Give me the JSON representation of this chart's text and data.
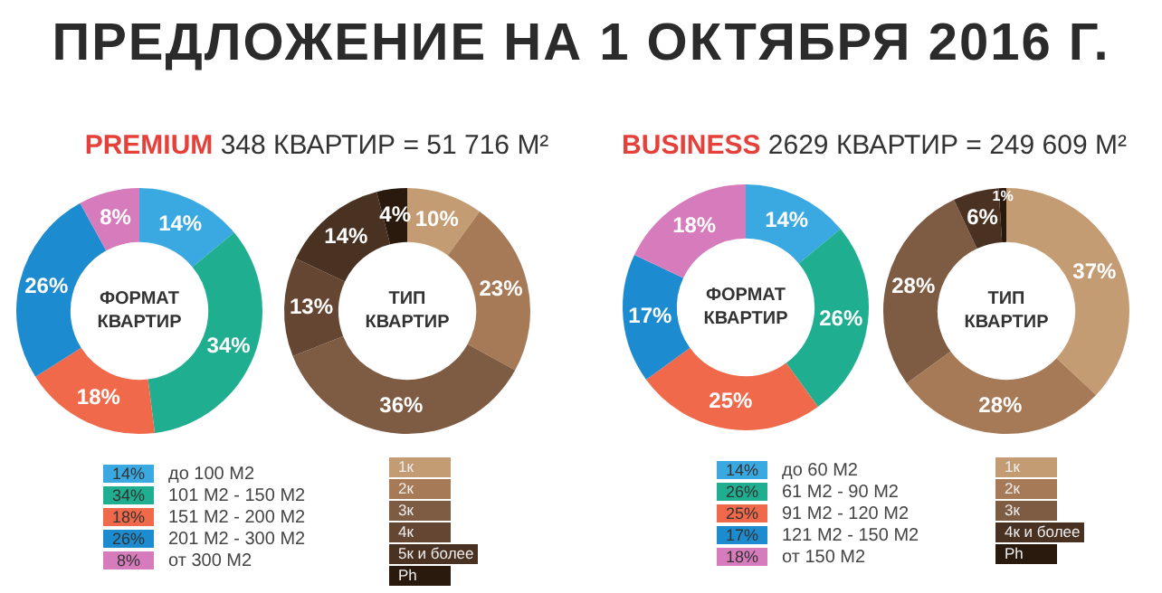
{
  "chart_data": [
    {
      "type": "donut",
      "title": "ПРЕДЛОЖЕНИЕ НА 1 ОКТЯБРЯ 2016 Г.",
      "subtitle": "PREMIUM 348 КВАРТИР = 51 716 М²",
      "annotations": [
        "ФОРМАТ КВАРТИР"
      ],
      "categories": [
        "до 100 М2",
        "101 М2 - 150 М2",
        "151 М2 - 200 М2",
        "201 М2 - 300 М2",
        "от 300 М2"
      ],
      "values": [
        14,
        34,
        18,
        26,
        8
      ],
      "value_labels": [
        "14%",
        "34%",
        "18%",
        "26%",
        "8%"
      ],
      "colors": [
        "#3ba9e1",
        "#1fae8f",
        "#f0694b",
        "#1d8bd0",
        "#d67bbb"
      ],
      "legend": "bottom"
    },
    {
      "type": "donut",
      "annotations": [
        "ТИП КВАРТИР"
      ],
      "categories": [
        "1к",
        "2к",
        "3к",
        "4к",
        "5к и более",
        "Ph"
      ],
      "values": [
        10,
        23,
        36,
        13,
        14,
        4
      ],
      "value_labels": [
        "10%",
        "23%",
        "36%",
        "13%",
        "14%",
        "4%"
      ],
      "colors": [
        "#c49c74",
        "#a67a57",
        "#7e5b43",
        "#654633",
        "#4a3222",
        "#2a190d"
      ],
      "legend": "bottom"
    },
    {
      "type": "donut",
      "subtitle": "BUSINESS 2629 КВАРТИР = 249 609 М²",
      "annotations": [
        "ФОРМАТ КВАРТИР"
      ],
      "categories": [
        "до 60 М2",
        "61 М2 - 90 М2",
        "91 М2 - 120 М2",
        "121 М2 - 150 М2",
        "от 150 М2"
      ],
      "values": [
        14,
        26,
        25,
        17,
        18
      ],
      "value_labels": [
        "14%",
        "26%",
        "25%",
        "17%",
        "18%"
      ],
      "colors": [
        "#3ba9e1",
        "#1fae8f",
        "#f0694b",
        "#1d8bd0",
        "#d67bbb"
      ],
      "legend": "bottom"
    },
    {
      "type": "donut",
      "annotations": [
        "ТИП КВАРТИР"
      ],
      "categories": [
        "1к",
        "2к",
        "3к",
        "4к и более",
        "Ph"
      ],
      "values": [
        37,
        28,
        28,
        6,
        1
      ],
      "value_labels": [
        "37%",
        "28%",
        "28%",
        "6%",
        "1%"
      ],
      "colors": [
        "#c49c74",
        "#a67a57",
        "#7e5b43",
        "#4a3222",
        "#2a190d"
      ],
      "legend": "bottom"
    }
  ]
}
